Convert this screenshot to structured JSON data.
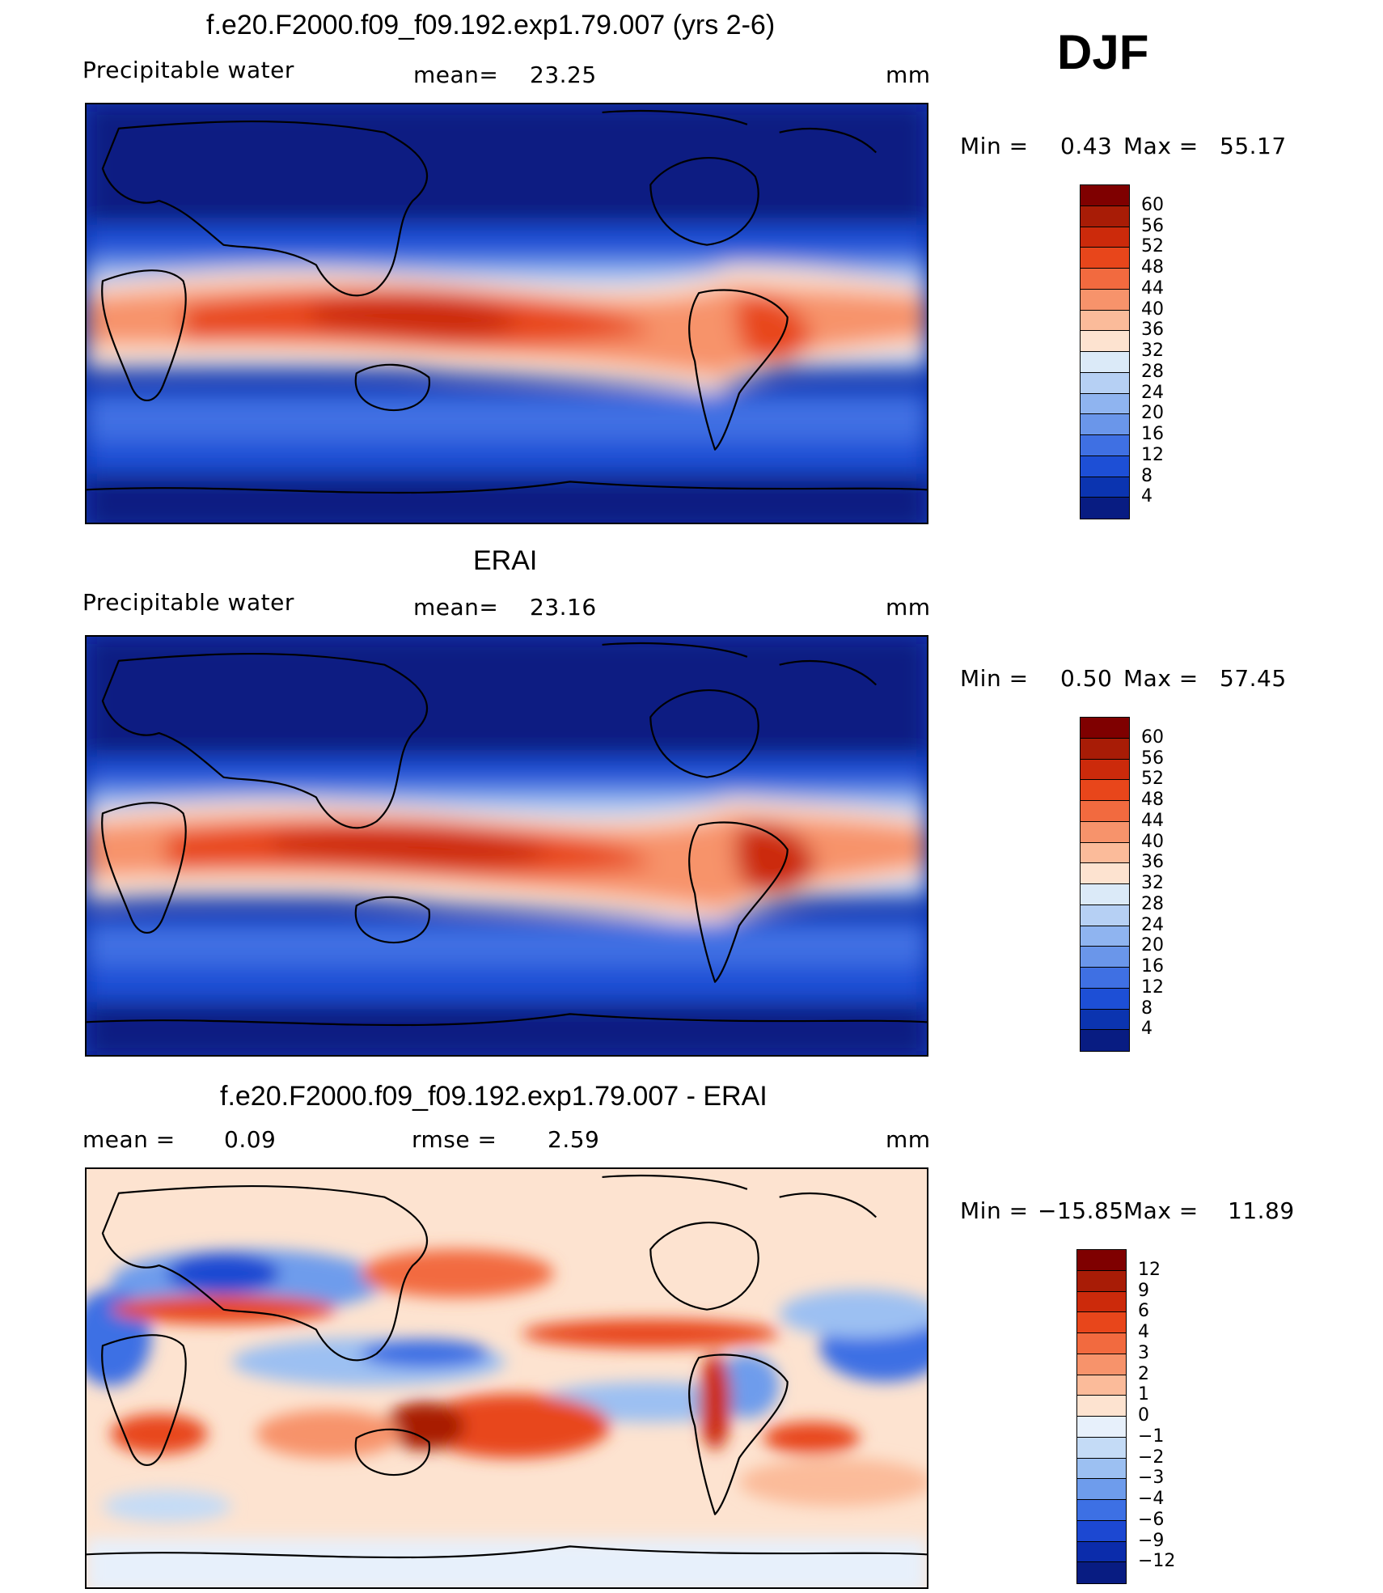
{
  "season": "DJF",
  "panels": [
    {
      "title": "f.e20.F2000.f09_f09.192.exp1.79.007 (yrs 2-6)",
      "left_label": "Precipitable  water",
      "mean_label": "mean=",
      "mean_value": "23.25",
      "units": "mm",
      "min_label": "Min  =",
      "min_value": "0.43",
      "max_label": "Max  =",
      "max_value": "55.17",
      "levels": [
        "60",
        "56",
        "52",
        "48",
        "44",
        "40",
        "36",
        "32",
        "28",
        "24",
        "20",
        "16",
        "12",
        "8",
        "4"
      ],
      "colors": [
        "#7f0000",
        "#a81c06",
        "#cc2a0b",
        "#e8461b",
        "#f26a3f",
        "#f7936b",
        "#fbbb9a",
        "#fde3d0",
        "#dbeaf8",
        "#b6d0f4",
        "#8fb4f0",
        "#6a96ea",
        "#3f70e3",
        "#1d4fd6",
        "#0b34b0",
        "#081c82"
      ]
    },
    {
      "title": "ERAI",
      "left_label": "Precipitable  water",
      "mean_label": "mean=",
      "mean_value": "23.16",
      "units": "mm",
      "min_label": "Min  =",
      "min_value": "0.50",
      "max_label": "Max  =",
      "max_value": "57.45",
      "levels": [
        "60",
        "56",
        "52",
        "48",
        "44",
        "40",
        "36",
        "32",
        "28",
        "24",
        "20",
        "16",
        "12",
        "8",
        "4"
      ],
      "colors": [
        "#7f0000",
        "#a81c06",
        "#cc2a0b",
        "#e8461b",
        "#f26a3f",
        "#f7936b",
        "#fbbb9a",
        "#fde3d0",
        "#dbeaf8",
        "#b6d0f4",
        "#8fb4f0",
        "#6a96ea",
        "#3f70e3",
        "#1d4fd6",
        "#0b34b0",
        "#081c82"
      ]
    },
    {
      "title": "f.e20.F2000.f09_f09.192.exp1.79.007 - ERAI",
      "left_label": "mean  =",
      "left_value": "0.09",
      "rmse_label": "rmse  =",
      "rmse_value": "2.59",
      "units": "mm",
      "min_label": "Min  =",
      "min_value": "−15.85",
      "max_label": "Max  =",
      "max_value": "11.89",
      "levels": [
        "12",
        "9",
        "6",
        "4",
        "3",
        "2",
        "1",
        "0",
        "−1",
        "−2",
        "−3",
        "−4",
        "−6",
        "−9",
        "−12"
      ],
      "colors": [
        "#7f0000",
        "#a81c06",
        "#cc2a0b",
        "#e8461b",
        "#f26a3f",
        "#f7936b",
        "#fbbb9a",
        "#fde3d0",
        "#e7f0fb",
        "#c4dbf6",
        "#9cc0f2",
        "#6e9cec",
        "#3d70e4",
        "#1c48d2",
        "#0b2cab",
        "#081c82"
      ]
    }
  ]
}
